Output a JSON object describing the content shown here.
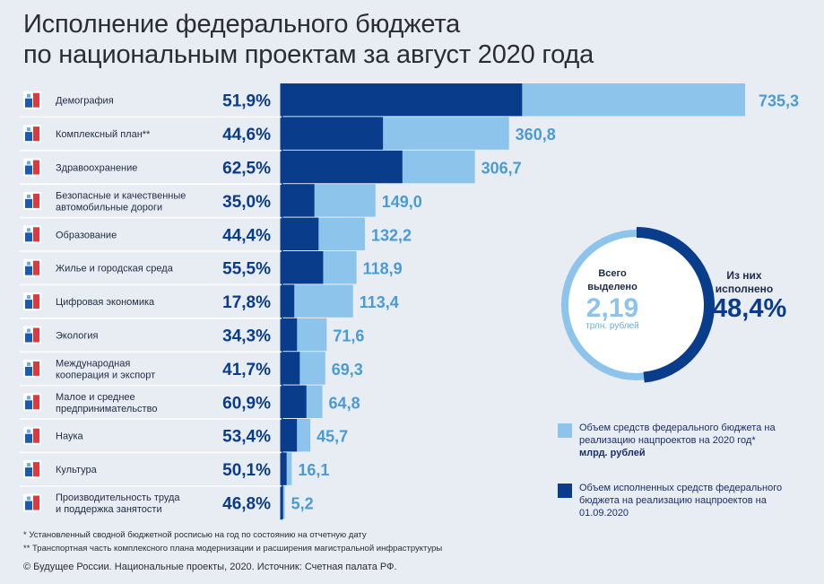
{
  "header": {
    "title_line1": "Исполнение федерального бюджета",
    "title_line2": "по национальным проектам за август 2020 года"
  },
  "colors": {
    "allocated": "#8cc4ec",
    "executed": "#0a3c8c",
    "label_text": "#0a3c8c",
    "value_text": "#4a9ad6",
    "background": "#e8edf3"
  },
  "chart_data": {
    "type": "bar",
    "orientation": "horizontal",
    "categories": [
      "Демография",
      "Комплексный план**",
      "Здравоохранение",
      "Безопасные и качественные автомобильные дороги",
      "Образование",
      "Жилье и городская среда",
      "Цифровая экономика",
      "Экология",
      "Международная кооперация и экспорт",
      "Малое и среднее предпринимательство",
      "Наука",
      "Культура",
      "Производительность труда и поддержка занятости"
    ],
    "category_lines": [
      [
        "Демография"
      ],
      [
        "Комплексный план**"
      ],
      [
        "Здравоохранение"
      ],
      [
        "Безопасные и качественные",
        "автомобильные дороги"
      ],
      [
        "Образование"
      ],
      [
        "Жилье и городская среда"
      ],
      [
        "Цифровая экономика"
      ],
      [
        "Экология"
      ],
      [
        "Международная",
        "кооперация и экспорт"
      ],
      [
        "Малое и среднее",
        "предпринимательство"
      ],
      [
        "Наука"
      ],
      [
        "Культура"
      ],
      [
        "Производительность труда",
        "и поддержка занятости"
      ]
    ],
    "icons": [
      "family-icon",
      "highway-icon",
      "medical-cross-icon",
      "road-city-icon",
      "book-icon",
      "building-icon",
      "digital-grid-icon",
      "sprout-icon",
      "globe-export-icon",
      "rocket-icon",
      "science-icon",
      "theater-icon",
      "worker-icon"
    ],
    "series": [
      {
        "name": "Объем средств федерального бюджета на реализацию нацпроектов на 2020 год*",
        "values": [
          735.3,
          360.8,
          306.7,
          149.0,
          132.2,
          118.9,
          113.4,
          71.6,
          69.3,
          64.8,
          45.7,
          16.1,
          5.2
        ],
        "value_labels": [
          "735,3",
          "360,8",
          "306,7",
          "149,0",
          "132,2",
          "118,9",
          "113,4",
          "71,6",
          "69,3",
          "64,8",
          "45,7",
          "16,1",
          "5,2"
        ]
      },
      {
        "name": "Объем исполненных средств федерального бюджета на реализацию нацпроектов на 01.09.2020",
        "percent_executed": [
          51.9,
          44.6,
          62.5,
          35.0,
          44.4,
          55.5,
          17.8,
          34.3,
          41.7,
          60.9,
          53.4,
          50.1,
          46.8
        ],
        "percent_labels": [
          "51,9%",
          "44,6%",
          "62,5%",
          "35,0%",
          "44,4%",
          "55,5%",
          "17,8%",
          "34,3%",
          "41,7%",
          "60,9%",
          "53,4%",
          "50,1%",
          "46,8%"
        ]
      }
    ],
    "unit": "млрд. рублей",
    "xlim": [
      0,
      735.3
    ]
  },
  "summary": {
    "total_label": "Всего выделено",
    "total_value": "2,19",
    "total_unit": "трлн. рублей",
    "executed_label": "Из них исполнено",
    "executed_value": "48,4%",
    "executed_fraction": 0.484
  },
  "legend": {
    "allocated_text": "Объем средств федерального бюджета на реализацию нацпроектов на 2020 год*",
    "allocated_unit": "млрд. рублей",
    "executed_text": "Объем исполненных средств федерального бюджета на реализацию нацпроектов на 01.09.2020"
  },
  "notes": {
    "note1": "* Установленный сводной бюджетной росписью на год по состоянию на отчетную дату",
    "note2": "** Транспортная часть комплексного плана модернизации и расширения магистральной инфраструктуры"
  },
  "footer": {
    "source": "© Будущее России. Национальные проекты, 2020. Источник: Счетная палата РФ."
  }
}
